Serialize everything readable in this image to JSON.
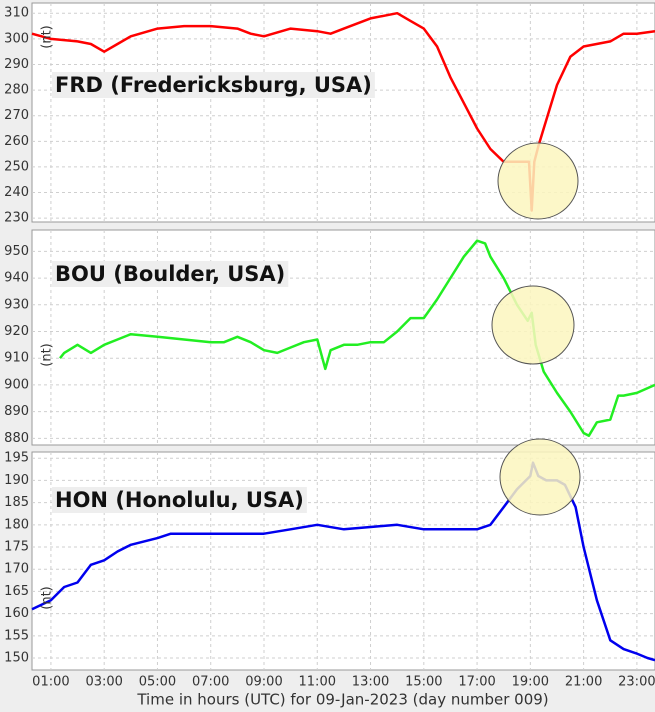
{
  "chart_data": [
    {
      "type": "line",
      "title": "FRD (Fredericksburg, USA)",
      "ylabel": "(nt)",
      "color": "#ff0000",
      "x": [
        0.29,
        1,
        2,
        2.5,
        3,
        3.5,
        4,
        5,
        6,
        7,
        8,
        8.5,
        9,
        10,
        11,
        11.5,
        12,
        13,
        14,
        14.5,
        15,
        15.5,
        16,
        16.5,
        17,
        17.5,
        18,
        18.5,
        18.95,
        19.05,
        19.15,
        19.3,
        19.5,
        20,
        20.5,
        21,
        22,
        22.5,
        23,
        23.68
      ],
      "values": [
        302,
        300,
        299,
        298,
        295,
        298,
        301,
        304,
        305,
        305,
        304,
        302,
        301,
        304,
        303,
        302,
        304,
        308,
        310,
        307,
        304,
        297,
        285,
        275,
        265,
        257,
        252,
        252,
        252,
        233,
        252,
        258,
        265,
        282,
        293,
        297,
        299,
        302,
        302,
        303
      ],
      "ylim": [
        228.5,
        314
      ],
      "yticks": [
        230,
        240,
        250,
        260,
        270,
        280,
        290,
        300,
        310
      ]
    },
    {
      "type": "line",
      "title": "BOU (Boulder, USA)",
      "ylabel": "(nt)",
      "color": "#22ee22",
      "x": [
        1.34,
        1.5,
        2,
        2.5,
        3,
        3.5,
        4,
        5,
        6,
        7,
        7.5,
        8,
        8.5,
        9,
        9.5,
        10,
        10.5,
        11,
        11.3,
        11.5,
        12,
        12.5,
        13,
        13.5,
        14,
        14.5,
        15,
        15.5,
        16,
        16.5,
        17,
        17.3,
        17.5,
        18,
        18.5,
        18.9,
        19.05,
        19.2,
        19.5,
        20,
        20.5,
        21,
        21.2,
        21.5,
        22,
        22.3,
        22.5,
        23,
        23.68
      ],
      "values": [
        910,
        912,
        915,
        912,
        915,
        917,
        919,
        918,
        917,
        916,
        916,
        918,
        916,
        913,
        912,
        914,
        916,
        917,
        906,
        913,
        915,
        915,
        916,
        916,
        920,
        925,
        925,
        932,
        940,
        948,
        954,
        953,
        948,
        940,
        930,
        924,
        927,
        915,
        905,
        897,
        890,
        882,
        881,
        886,
        887,
        896,
        896,
        897,
        900
      ],
      "ylim": [
        877.5,
        958
      ],
      "yticks": [
        880,
        890,
        900,
        910,
        920,
        930,
        940,
        950
      ]
    },
    {
      "type": "line",
      "title": "HON (Honolulu, USA)",
      "ylabel": "(nt)",
      "color": "#0000ee",
      "x": [
        0.29,
        1,
        1.5,
        2,
        2.5,
        3,
        3.5,
        4,
        5,
        5.5,
        6,
        7,
        8,
        9,
        10,
        11,
        12,
        13,
        14,
        15,
        16,
        17,
        17.5,
        18,
        18.5,
        19,
        19.1,
        19.3,
        19.6,
        20,
        20.3,
        20.7,
        21,
        21.5,
        22,
        22.5,
        23,
        23.4,
        23.68
      ],
      "values": [
        161,
        163,
        166,
        167,
        171,
        172,
        174,
        175.5,
        177,
        178,
        178,
        178,
        178,
        178,
        179,
        180,
        179,
        179.5,
        180,
        179,
        179,
        179,
        180,
        184,
        188,
        191,
        194,
        191,
        190,
        190,
        189,
        184,
        175,
        163,
        154,
        152,
        151,
        150,
        149.5
      ],
      "ylim": [
        147.3,
        196.4
      ],
      "yticks": [
        150,
        155,
        160,
        165,
        170,
        175,
        180,
        185,
        190,
        195
      ],
      "xlabel": "Time in hours (UTC) for 09-Jan-2023 (day number 009)",
      "xlim": [
        0.29,
        23.68
      ],
      "xticks": [
        {
          "value": 1,
          "label": "01:00"
        },
        {
          "value": 3,
          "label": "03:00"
        },
        {
          "value": 5,
          "label": "05:00"
        },
        {
          "value": 7,
          "label": "07:00"
        },
        {
          "value": 9,
          "label": "09:00"
        },
        {
          "value": 11,
          "label": "11:00"
        },
        {
          "value": 13,
          "label": "13:00"
        },
        {
          "value": 15,
          "label": "15:00"
        },
        {
          "value": 17,
          "label": "17:00"
        },
        {
          "value": 19,
          "label": "19:00"
        },
        {
          "value": 21,
          "label": "21:00"
        },
        {
          "value": 23,
          "label": "23:00"
        }
      ]
    }
  ]
}
